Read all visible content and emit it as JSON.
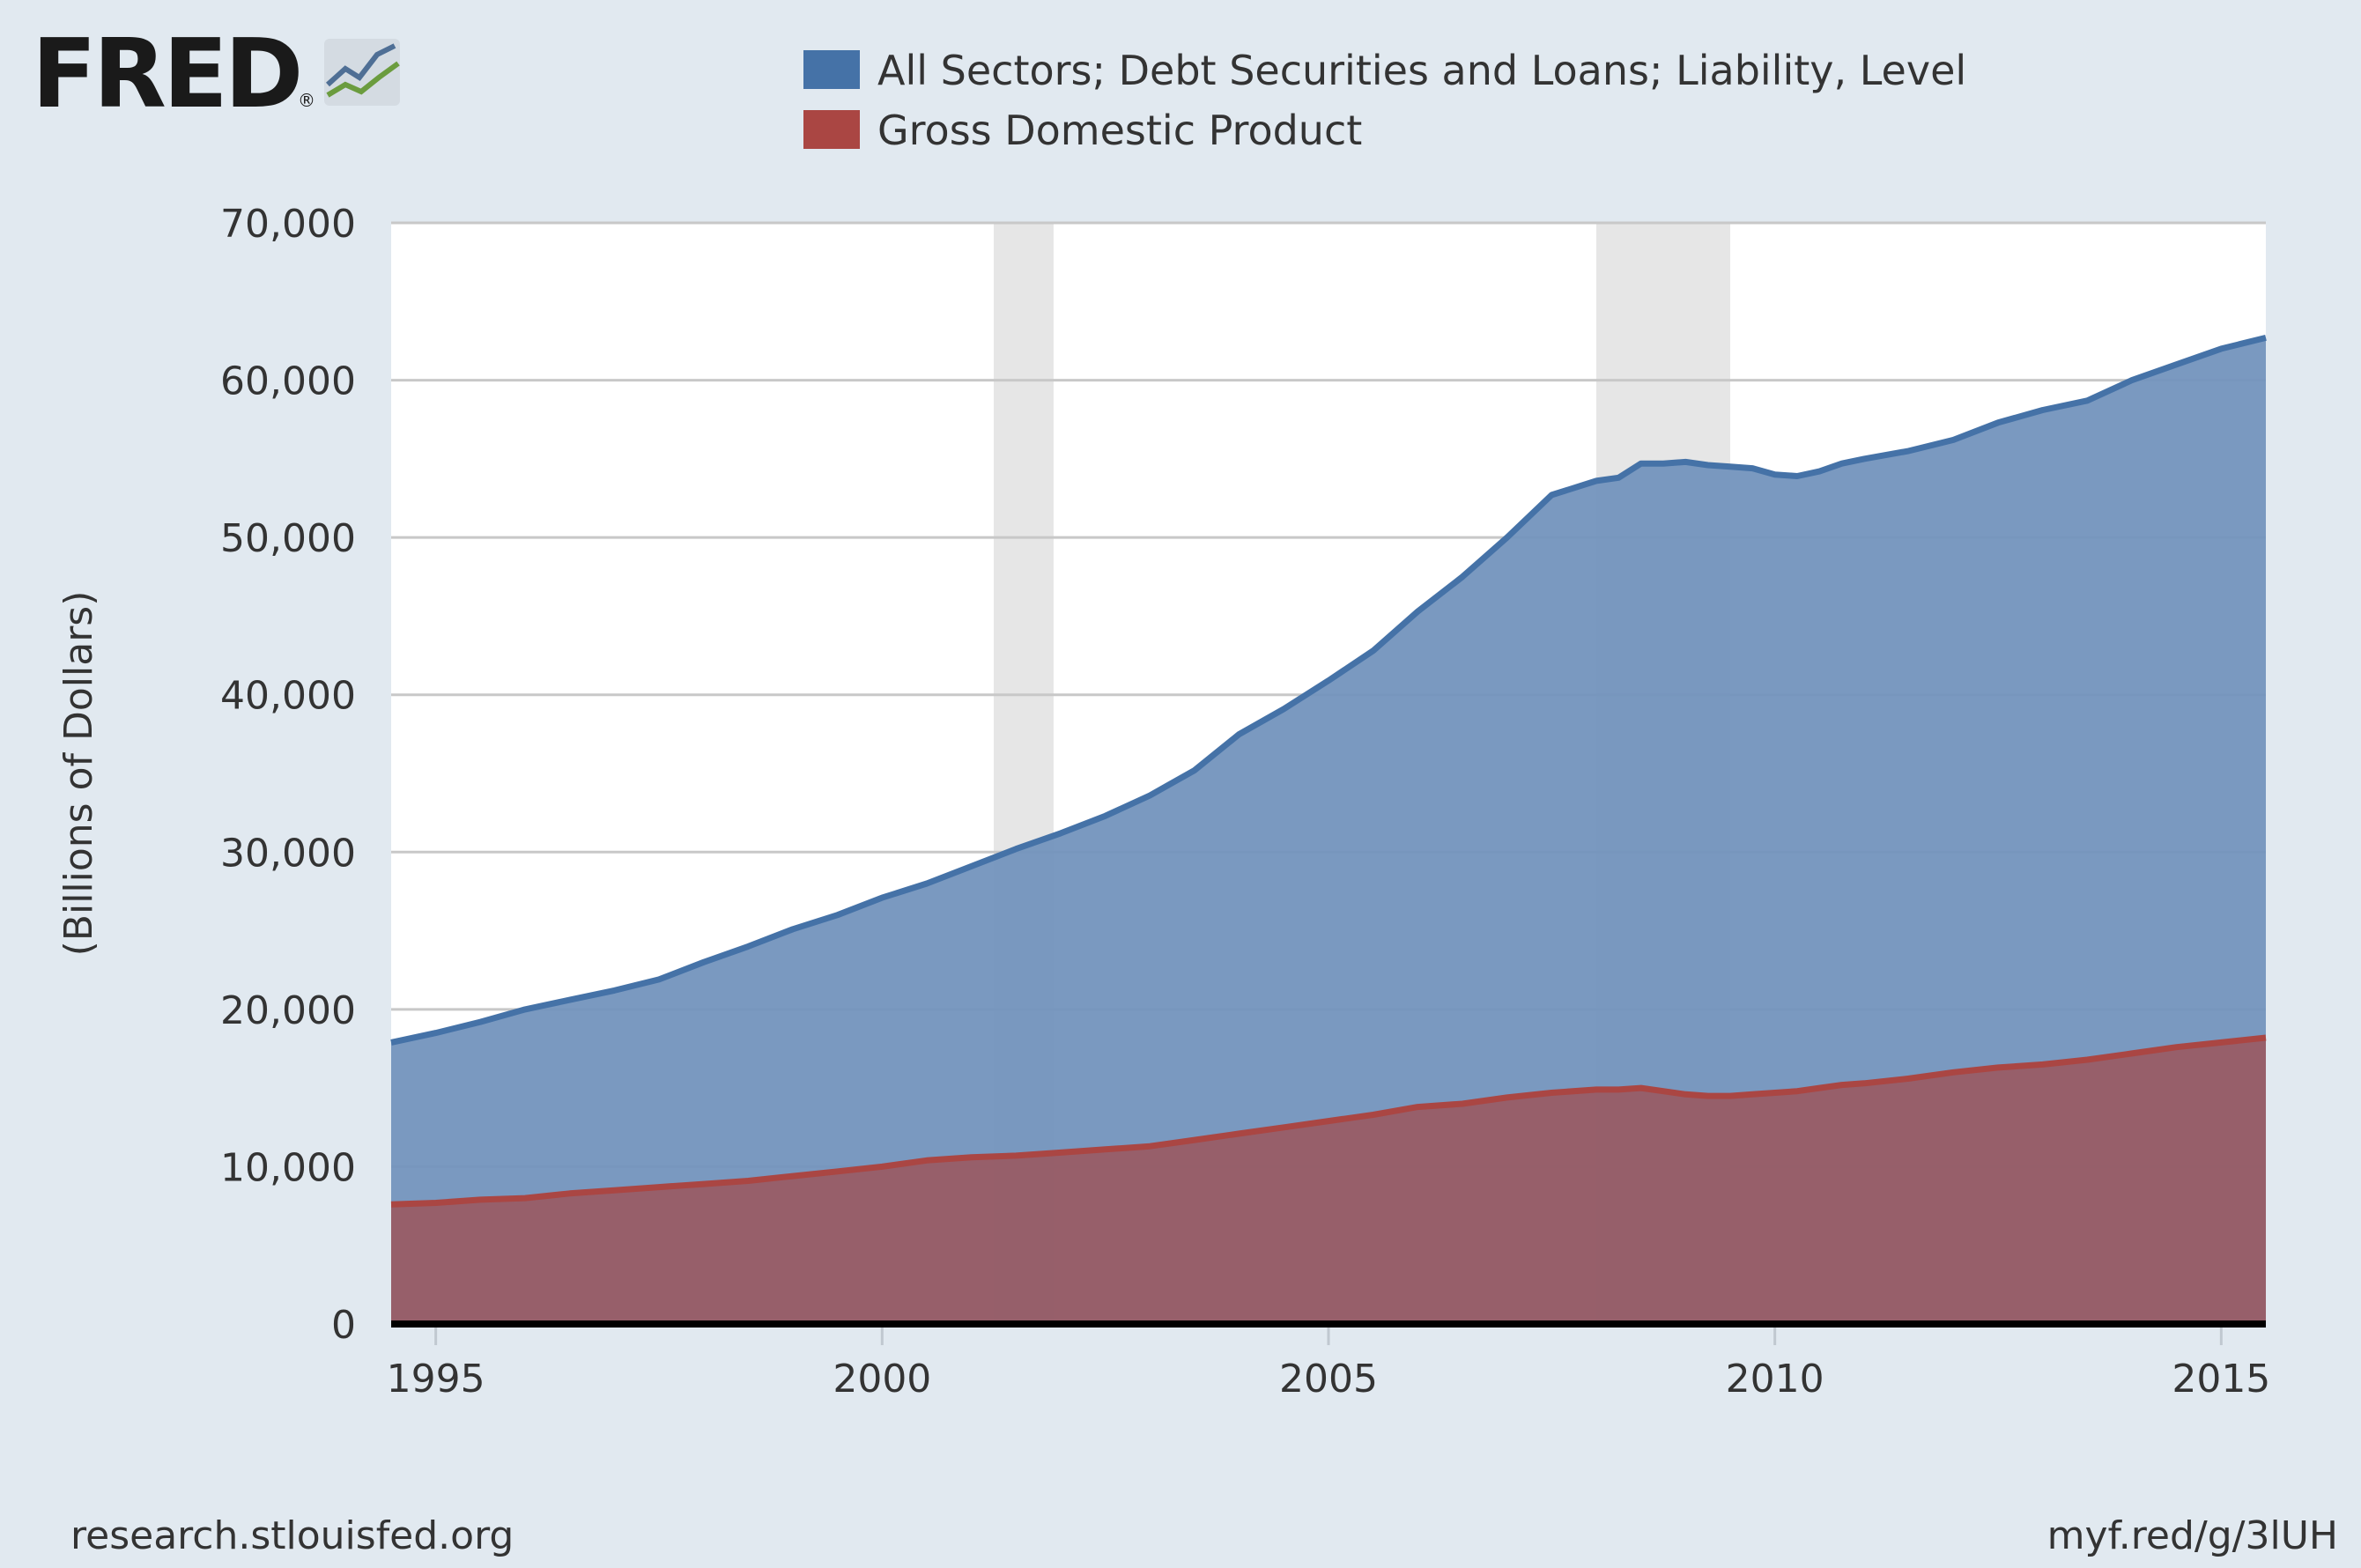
{
  "logo": {
    "text": "FRED",
    "mark": "®",
    "icon": "trend-chart-icon"
  },
  "footer": {
    "left": "research.stlouisfed.org",
    "right": "myf.red/g/3lUH"
  },
  "colors": {
    "debt": "#4572a7",
    "debt_fill": "#7394bd",
    "gdp": "#aa4643",
    "gdp_fill": "#995a63",
    "recession": "#e6e6e6",
    "grid": "#c8c8c8",
    "background": "#e1e9f0",
    "plot": "#ffffff"
  },
  "chart_data": {
    "type": "area",
    "ylabel": "(Billions of Dollars)",
    "xlim": [
      1994.5,
      2015.5
    ],
    "ylim": [
      0,
      70000
    ],
    "yticks": [
      0,
      10000,
      20000,
      30000,
      40000,
      50000,
      60000,
      70000
    ],
    "ytick_labels": [
      "0",
      "10,000",
      "20,000",
      "30,000",
      "40,000",
      "50,000",
      "60,000",
      "70,000"
    ],
    "xticks": [
      1995,
      2000,
      2005,
      2010,
      2015
    ],
    "xtick_labels": [
      "1995",
      "2000",
      "2005",
      "2010",
      "2015"
    ],
    "grid": true,
    "legend_position": "top",
    "recessions": [
      [
        2001.25,
        2001.92
      ],
      [
        2008.0,
        2009.5
      ]
    ],
    "x": [
      1994.5,
      1995,
      1995.5,
      1996,
      1996.5,
      1997,
      1997.5,
      1998,
      1998.5,
      1999,
      1999.5,
      2000,
      2000.5,
      2001,
      2001.5,
      2002,
      2002.5,
      2003,
      2003.5,
      2004,
      2004.5,
      2005,
      2005.5,
      2006,
      2006.5,
      2007,
      2007.5,
      2008,
      2008.25,
      2008.5,
      2008.75,
      2009,
      2009.25,
      2009.5,
      2009.75,
      2010,
      2010.25,
      2010.5,
      2010.75,
      2011,
      2011.5,
      2012,
      2012.5,
      2013,
      2013.5,
      2014,
      2014.5,
      2015,
      2015.5
    ],
    "series": [
      {
        "name": "All Sectors; Debt Securities and Loans; Liability, Level",
        "values": [
          17900,
          18500,
          19200,
          20000,
          20600,
          21200,
          21900,
          23000,
          24000,
          25100,
          26000,
          27100,
          28000,
          29100,
          30200,
          31200,
          32300,
          33600,
          35200,
          37500,
          39100,
          40900,
          42800,
          45300,
          47500,
          50000,
          52700,
          53600,
          53800,
          54700,
          54700,
          54800,
          54600,
          54500,
          54400,
          54000,
          53900,
          54200,
          54700,
          55000,
          55500,
          56200,
          57300,
          58100,
          58700,
          60000,
          61000,
          62000,
          62700
        ]
      },
      {
        "name": "Gross Domestic Product",
        "values": [
          7600,
          7700,
          7900,
          8000,
          8300,
          8500,
          8700,
          8900,
          9100,
          9400,
          9700,
          10000,
          10400,
          10600,
          10700,
          10900,
          11100,
          11300,
          11700,
          12100,
          12500,
          12900,
          13300,
          13800,
          14000,
          14400,
          14700,
          14900,
          14900,
          15000,
          14800,
          14600,
          14500,
          14500,
          14600,
          14700,
          14800,
          15000,
          15200,
          15300,
          15600,
          16000,
          16300,
          16500,
          16800,
          17200,
          17600,
          17900,
          18200
        ]
      }
    ]
  }
}
